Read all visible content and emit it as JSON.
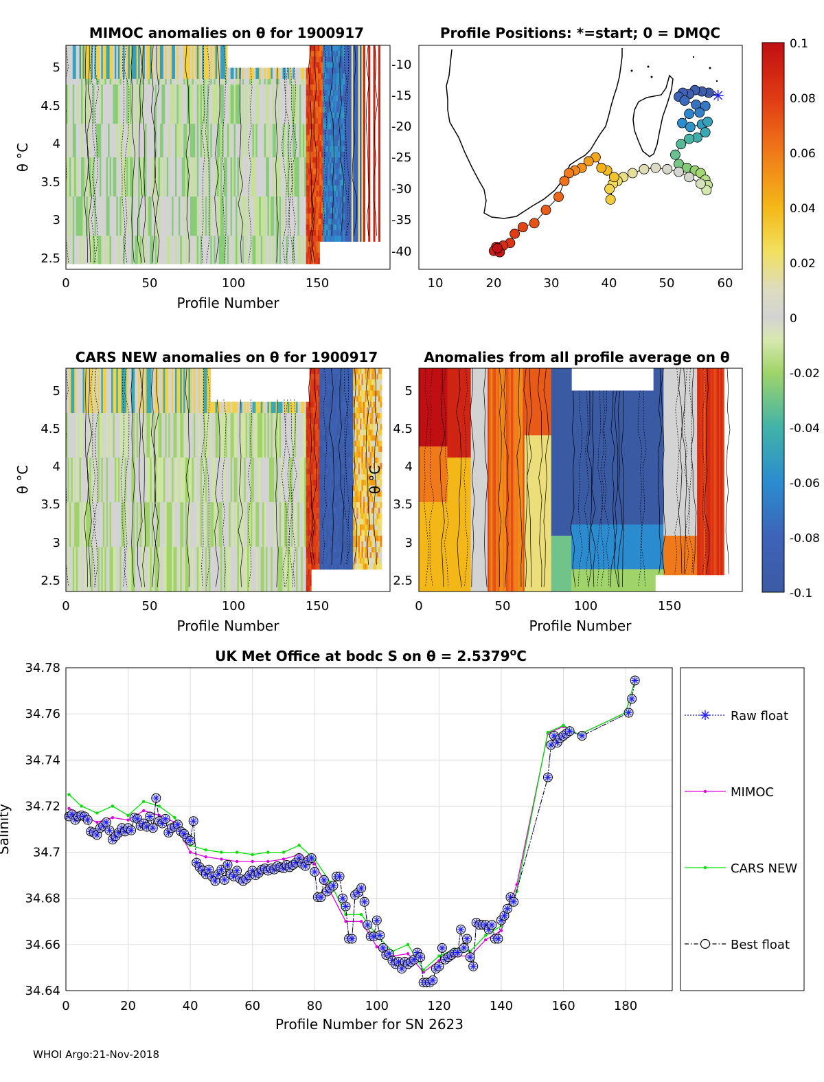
{
  "footer": "WHOI Argo:21-Nov-2018",
  "colors": {
    "raw": "#1a1aff",
    "mimoc": "#e000e0",
    "cars": "#00e000",
    "best": "#000000",
    "grid": "#dcdcdc",
    "neutral": "#d3d3d3",
    "land": "#000000"
  },
  "colorbar": {
    "ticks": [
      "0.1",
      "0.08",
      "0.06",
      "0.04",
      "0.02",
      "0",
      "-0.02",
      "-0.04",
      "-0.06",
      "-0.08",
      "-0.1"
    ],
    "range": [
      -0.1,
      0.1
    ]
  },
  "chart_data": [
    {
      "id": "mimoc",
      "type": "heatmap",
      "title": "MIMOC anomalies on θ  for 1900917",
      "xlabel": "Profile Number",
      "ylabel": "θ °C",
      "xlim": [
        0,
        193
      ],
      "ylim": [
        2.35,
        5.25
      ],
      "xticks": [
        "0",
        "50",
        "100",
        "150"
      ],
      "yticks": [
        "2.5",
        "3",
        "3.5",
        "4",
        "4.5",
        "5"
      ]
    },
    {
      "id": "positions",
      "type": "scatter",
      "title": "Profile Positions: *=start; 0 = DMQC",
      "xlim": [
        7,
        63
      ],
      "ylim": [
        -42,
        -8
      ],
      "xticks": [
        "10",
        "20",
        "30",
        "40",
        "50",
        "60"
      ],
      "yticks": [
        "-10",
        "-15",
        "-20",
        "-25",
        "-30",
        "-35",
        "-40"
      ],
      "track": [
        [
          58.8,
          -15.6
        ],
        [
          57.2,
          -15.2
        ],
        [
          56.0,
          -15.0
        ],
        [
          54.8,
          -14.8
        ],
        [
          53.8,
          -15.4
        ],
        [
          52.7,
          -15.2
        ],
        [
          52.0,
          -15.8
        ],
        [
          53.0,
          -16.4
        ],
        [
          55.0,
          -17.0
        ],
        [
          56.6,
          -17.2
        ],
        [
          55.6,
          -18.2
        ],
        [
          53.8,
          -18.4
        ],
        [
          52.6,
          -19.8
        ],
        [
          54.0,
          -20.4
        ],
        [
          56.0,
          -20.0
        ],
        [
          57.0,
          -19.6
        ],
        [
          56.6,
          -21.2
        ],
        [
          55.2,
          -22.0
        ],
        [
          53.8,
          -22.2
        ],
        [
          52.4,
          -23.0
        ],
        [
          51.4,
          -24.6
        ],
        [
          52.0,
          -26.0
        ],
        [
          53.4,
          -26.6
        ],
        [
          54.8,
          -27.0
        ],
        [
          55.8,
          -27.4
        ],
        [
          56.6,
          -28.4
        ],
        [
          57.0,
          -29.2
        ],
        [
          56.8,
          -30.0
        ],
        [
          55.8,
          -29.0
        ],
        [
          53.8,
          -28.0
        ],
        [
          52.0,
          -27.2
        ],
        [
          50.0,
          -26.8
        ],
        [
          48.0,
          -26.6
        ],
        [
          46.0,
          -26.8
        ],
        [
          44.0,
          -27.4
        ],
        [
          42.4,
          -28.0
        ],
        [
          41.4,
          -28.6
        ],
        [
          40.6,
          -29.0
        ],
        [
          40.0,
          -29.8
        ],
        [
          40.2,
          -31.4
        ],
        [
          40.8,
          -28.0
        ],
        [
          39.6,
          -27.0
        ],
        [
          38.6,
          -26.6
        ],
        [
          37.6,
          -25.0
        ],
        [
          36.4,
          -25.6
        ],
        [
          35.2,
          -26.6
        ],
        [
          34.0,
          -27.0
        ],
        [
          33.0,
          -27.4
        ],
        [
          32.2,
          -28.6
        ],
        [
          31.2,
          -31.0
        ],
        [
          29.0,
          -33.0
        ],
        [
          27.0,
          -35.0
        ],
        [
          25.0,
          -35.6
        ],
        [
          23.6,
          -36.6
        ],
        [
          22.8,
          -38.0
        ],
        [
          21.6,
          -38.4
        ],
        [
          20.4,
          -38.6
        ],
        [
          20.0,
          -39.2
        ],
        [
          21.0,
          -39.4
        ],
        [
          20.6,
          -38.8
        ]
      ]
    },
    {
      "id": "cars",
      "type": "heatmap",
      "title": "CARS NEW anomalies on θ for 1900917",
      "xlabel": "Profile Number",
      "ylabel": "θ °C",
      "xlim": [
        0,
        193
      ],
      "ylim": [
        2.35,
        5.25
      ],
      "xticks": [
        "0",
        "50",
        "100",
        "150"
      ],
      "yticks": [
        "2.5",
        "3",
        "3.5",
        "4",
        "4.5",
        "5"
      ]
    },
    {
      "id": "avg",
      "type": "heatmap",
      "title": "Anomalies from all profile average on θ",
      "xlabel": "Profile Number",
      "ylabel": "θ °C",
      "xlim": [
        0,
        193
      ],
      "ylim": [
        2.35,
        5.25
      ],
      "xticks": [
        "0",
        "50",
        "100",
        "150"
      ],
      "yticks": [
        "2.5",
        "3",
        "3.5",
        "4",
        "4.5",
        "5"
      ]
    },
    {
      "id": "salinity",
      "type": "line",
      "title": "UK Met Office at bodc S on θ = 2.5379°C",
      "title_main": "UK Met Office at bodc S on θ = 2.5379",
      "title_sup": "o",
      "title_tail": "C",
      "xlabel": "Profile Number for SN 2623",
      "ylabel": "Salinity",
      "xlim": [
        0,
        195
      ],
      "ylim": [
        34.64,
        34.78
      ],
      "xticks": [
        0,
        20,
        40,
        60,
        80,
        100,
        120,
        140,
        160,
        180
      ],
      "yticks": [
        "34.64",
        "34.66",
        "34.68",
        "34.7",
        "34.72",
        "34.74",
        "34.76",
        "34.78"
      ],
      "legend": [
        "Raw float",
        "MIMOC",
        "CARS NEW",
        "Best float"
      ],
      "legend_position": "outside-right",
      "series": [
        {
          "name": "Best float",
          "x": [
            1,
            2,
            3,
            4,
            5,
            6,
            7,
            8,
            9,
            10,
            11,
            12,
            13,
            14,
            15,
            16,
            17,
            18,
            19,
            20,
            21,
            22,
            23,
            24,
            25,
            26,
            27,
            28,
            29,
            30,
            31,
            32,
            33,
            34,
            35,
            36,
            37,
            38,
            39,
            40,
            41,
            42,
            43,
            44,
            45,
            46,
            47,
            48,
            49,
            50,
            51,
            52,
            53,
            54,
            55,
            56,
            57,
            58,
            59,
            60,
            61,
            62,
            63,
            64,
            65,
            66,
            67,
            68,
            69,
            70,
            71,
            72,
            73,
            74,
            75,
            76,
            77,
            78,
            79,
            80,
            81,
            82,
            83,
            84,
            85,
            86,
            87,
            88,
            89,
            90,
            91,
            92,
            93,
            94,
            95,
            96,
            97,
            98,
            99,
            100,
            101,
            102,
            103,
            104,
            105,
            106,
            107,
            108,
            109,
            110,
            111,
            112,
            113,
            114,
            115,
            116,
            117,
            118,
            119,
            120,
            121,
            122,
            123,
            124,
            125,
            126,
            127,
            128,
            129,
            130,
            131,
            132,
            133,
            134,
            135,
            136,
            137,
            138,
            139,
            140,
            141,
            142,
            143,
            144,
            155,
            156,
            157,
            158,
            159,
            160,
            161,
            162,
            166,
            181,
            182,
            183
          ],
          "values": [
            34.7155,
            34.7165,
            34.714,
            34.7155,
            34.716,
            34.7155,
            34.714,
            34.709,
            34.7085,
            34.7075,
            34.7105,
            34.7115,
            34.713,
            34.7095,
            34.7055,
            34.707,
            34.7085,
            34.7105,
            34.709,
            34.7105,
            34.7095,
            34.715,
            34.7145,
            34.7115,
            34.7125,
            34.711,
            34.7155,
            34.7105,
            34.7235,
            34.7135,
            34.7125,
            34.7145,
            34.7085,
            34.7105,
            34.711,
            34.712,
            34.709,
            34.708,
            34.706,
            34.705,
            34.7135,
            34.6955,
            34.6935,
            34.692,
            34.6905,
            34.6925,
            34.6895,
            34.6875,
            34.6905,
            34.6925,
            34.688,
            34.6945,
            34.6905,
            34.6895,
            34.692,
            34.6885,
            34.6875,
            34.6885,
            34.69,
            34.692,
            34.69,
            34.691,
            34.6925,
            34.693,
            34.692,
            34.693,
            34.6925,
            34.694,
            34.6935,
            34.693,
            34.6945,
            34.6935,
            34.6945,
            34.6955,
            34.6975,
            34.695,
            34.694,
            34.6965,
            34.6975,
            34.6915,
            34.6805,
            34.6805,
            34.688,
            34.683,
            34.6845,
            34.6855,
            34.6895,
            34.6895,
            34.68,
            34.6765,
            34.6625,
            34.6625,
            34.6815,
            34.6825,
            34.6845,
            34.6785,
            34.6685,
            34.6635,
            34.6635,
            34.6705,
            34.664,
            34.6585,
            34.6555,
            34.656,
            34.653,
            34.6515,
            34.6525,
            34.6495,
            34.6525,
            34.6515,
            34.6525,
            34.6535,
            34.6565,
            34.6545,
            34.6435,
            34.6435,
            34.6435,
            34.6445,
            34.6495,
            34.6505,
            34.6585,
            34.6535,
            34.6545,
            34.6555,
            34.6565,
            34.6565,
            34.6665,
            34.6585,
            34.6625,
            34.6545,
            34.6505,
            34.6695,
            34.6685,
            34.6685,
            34.6685,
            34.6665,
            34.6685,
            34.6625,
            34.6625,
            34.6705,
            34.6725,
            34.6755,
            34.6805,
            34.6785,
            34.7325,
            34.7465,
            34.7505,
            34.7475,
            34.7495,
            34.7505,
            34.7515,
            34.7525,
            34.7505,
            34.7605,
            34.7665,
            34.7745
          ]
        },
        {
          "name": "MIMOC",
          "x": [
            1,
            5,
            10,
            15,
            20,
            25,
            30,
            35,
            40,
            45,
            50,
            55,
            60,
            65,
            70,
            75,
            80,
            85,
            90,
            95,
            100,
            105,
            110,
            115,
            120,
            125,
            130,
            135,
            140,
            145,
            155,
            160,
            165,
            180,
            183
          ],
          "values": [
            34.719,
            34.716,
            34.713,
            34.715,
            34.714,
            34.718,
            34.716,
            34.713,
            34.7,
            34.698,
            34.697,
            34.696,
            34.696,
            34.696,
            34.697,
            34.699,
            34.695,
            34.683,
            34.67,
            34.67,
            34.659,
            34.655,
            34.656,
            34.648,
            34.653,
            34.655,
            34.655,
            34.662,
            34.666,
            34.686,
            34.7515,
            34.7545,
            34.751,
            34.7605,
            34.7745
          ]
        },
        {
          "name": "CARS NEW",
          "x": [
            1,
            5,
            10,
            15,
            20,
            25,
            30,
            35,
            40,
            45,
            50,
            55,
            60,
            65,
            70,
            75,
            80,
            85,
            90,
            95,
            100,
            105,
            110,
            115,
            120,
            125,
            130,
            135,
            140,
            145,
            155,
            160,
            165,
            180,
            183
          ],
          "values": [
            34.725,
            34.72,
            34.717,
            34.72,
            34.716,
            34.722,
            34.72,
            34.715,
            34.703,
            34.701,
            34.7,
            34.7,
            34.699,
            34.7,
            34.7,
            34.703,
            34.697,
            34.687,
            34.673,
            34.673,
            34.664,
            34.657,
            34.66,
            34.649,
            34.655,
            34.658,
            34.657,
            34.664,
            34.668,
            34.683,
            34.752,
            34.755,
            34.751,
            34.7605,
            34.7745
          ]
        }
      ]
    }
  ]
}
